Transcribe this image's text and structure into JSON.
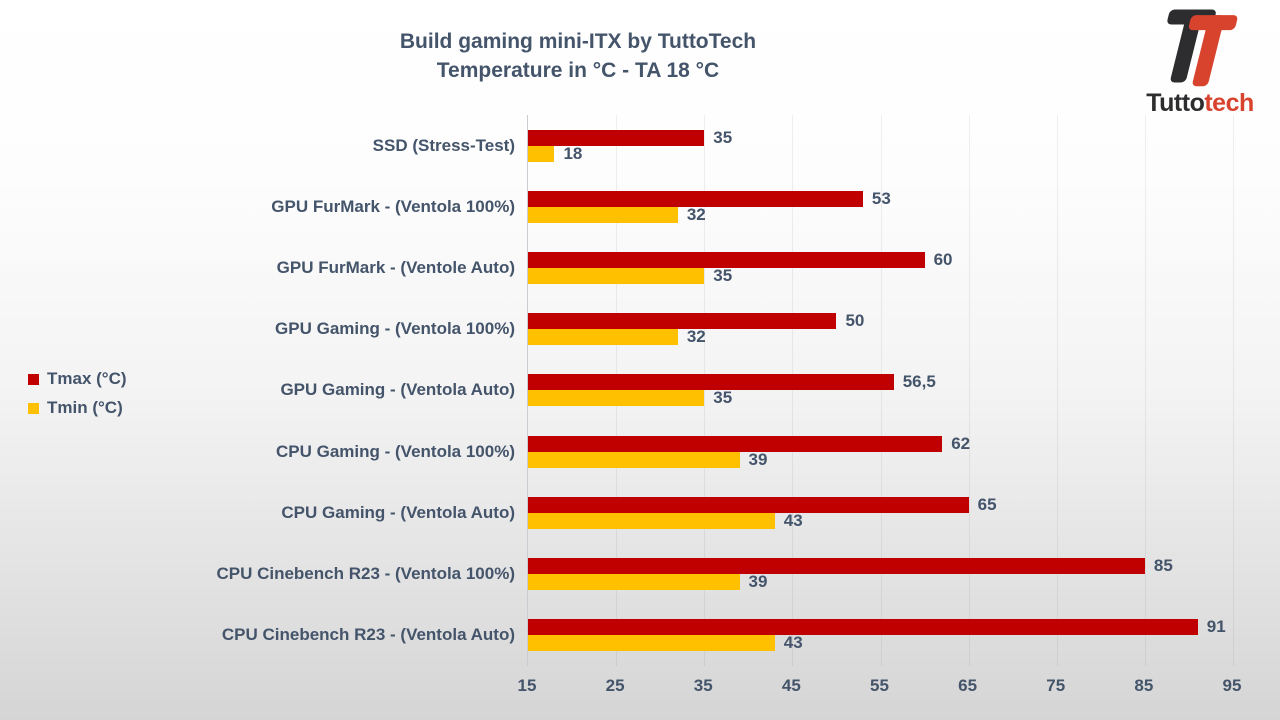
{
  "title": {
    "line1": "Build gaming mini-ITX by TuttoTech",
    "line2": "Temperature in °C - TA 18 °C"
  },
  "logo": {
    "brand_dark": "Tutto",
    "brand_red": "tech",
    "icon": "tuttotech-t-icon",
    "dark_color": "#2d2d2f",
    "red_color": "#d8432e"
  },
  "colors": {
    "tmax": "#C00000",
    "tmin": "#FFC000",
    "text": "#44546A"
  },
  "chart_data": {
    "type": "bar",
    "orientation": "horizontal",
    "title": "Build gaming mini-ITX by TuttoTech — Temperature in °C - TA 18 °C",
    "categories": [
      "SSD (Stress-Test)",
      "GPU FurMark - (Ventola 100%)",
      "GPU FurMark - (Ventole Auto)",
      "GPU Gaming - (Ventola 100%)",
      "GPU Gaming - (Ventola Auto)",
      "CPU Gaming - (Ventola 100%)",
      "CPU Gaming - (Ventola Auto)",
      "CPU Cinebench R23 - (Ventola 100%)",
      "CPU Cinebench R23 - (Ventola Auto)"
    ],
    "series": [
      {
        "name": "Tmax (°C)",
        "color": "#C00000",
        "values": [
          35,
          53,
          60,
          50,
          56.5,
          62,
          65,
          85,
          91
        ],
        "labels": [
          "35",
          "53",
          "60",
          "50",
          "56,5",
          "62",
          "65",
          "85",
          "91"
        ]
      },
      {
        "name": "Tmin (°C)",
        "color": "#FFC000",
        "values": [
          18,
          32,
          35,
          32,
          35,
          39,
          43,
          39,
          43
        ],
        "labels": [
          "18",
          "32",
          "35",
          "32",
          "35",
          "39",
          "43",
          "39",
          "43"
        ]
      }
    ],
    "x_axis": {
      "min": 15,
      "max": 95,
      "ticks": [
        15,
        25,
        35,
        45,
        55,
        65,
        75,
        85,
        95
      ]
    },
    "grid": "vertical-faint",
    "legend_position": "left",
    "data_labels": true
  }
}
